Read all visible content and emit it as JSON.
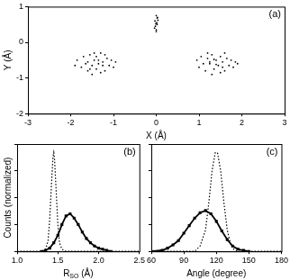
{
  "chart_data": [
    {
      "type": "scatter",
      "title": "(a)",
      "x_label": "X (Å)",
      "y_label": "Y (Å)",
      "xlim": [
        -3,
        3
      ],
      "xticks": [
        -3,
        -2,
        -1,
        0,
        1,
        2,
        3
      ],
      "ylim": [
        -2,
        1
      ],
      "yticks": [
        -2,
        -1,
        0,
        1
      ],
      "grid": false,
      "series": [
        {
          "color": "#000000",
          "marker": "circle",
          "values": [
            [
              -1.85,
              -0.5
            ],
            [
              -1.75,
              -0.7
            ],
            [
              -1.7,
              -0.4
            ],
            [
              -1.6,
              -0.8
            ],
            [
              -1.6,
              -0.55
            ],
            [
              -1.55,
              -0.35
            ],
            [
              -1.5,
              -0.65
            ],
            [
              -1.45,
              -0.5
            ],
            [
              -1.4,
              -0.75
            ],
            [
              -1.4,
              -0.4
            ],
            [
              -1.35,
              -0.6
            ],
            [
              -1.3,
              -0.3
            ],
            [
              -1.25,
              -0.55
            ],
            [
              -1.2,
              -0.8
            ],
            [
              -1.15,
              -0.45
            ],
            [
              -1.1,
              -0.65
            ],
            [
              -1.05,
              -0.5
            ],
            [
              -1.0,
              -0.7
            ],
            [
              -0.95,
              -0.55
            ],
            [
              -1.5,
              -0.9
            ],
            [
              -1.3,
              -0.85
            ],
            [
              -1.65,
              -0.6
            ],
            [
              -1.45,
              -0.3
            ],
            [
              -1.2,
              -0.35
            ],
            [
              -1.9,
              -0.65
            ],
            [
              -1.35,
              -0.5
            ],
            [
              -1.55,
              -0.75
            ],
            [
              -1.25,
              -0.65
            ],
            [
              0.95,
              -0.5
            ],
            [
              1.0,
              -0.7
            ],
            [
              1.05,
              -0.4
            ],
            [
              1.1,
              -0.6
            ],
            [
              1.15,
              -0.8
            ],
            [
              1.2,
              -0.45
            ],
            [
              1.25,
              -0.6
            ],
            [
              1.3,
              -0.35
            ],
            [
              1.35,
              -0.75
            ],
            [
              1.4,
              -0.5
            ],
            [
              1.45,
              -0.65
            ],
            [
              1.5,
              -0.4
            ],
            [
              1.55,
              -0.55
            ],
            [
              1.6,
              -0.8
            ],
            [
              1.65,
              -0.45
            ],
            [
              1.7,
              -0.65
            ],
            [
              1.75,
              -0.5
            ],
            [
              1.8,
              -0.7
            ],
            [
              1.85,
              -0.55
            ],
            [
              1.3,
              -0.9
            ],
            [
              1.5,
              -0.85
            ],
            [
              1.2,
              -0.3
            ],
            [
              1.6,
              -0.3
            ],
            [
              1.4,
              -0.62
            ],
            [
              1.9,
              -0.6
            ],
            [
              1.35,
              -0.48
            ],
            [
              1.55,
              -0.7
            ],
            [
              1.25,
              -0.55
            ],
            [
              0,
              0.35
            ],
            [
              0.02,
              0.5
            ],
            [
              -0.03,
              0.6
            ],
            [
              0.03,
              0.7
            ],
            [
              -0.02,
              0.45
            ],
            [
              0.01,
              0.55
            ],
            [
              0,
              0.75
            ],
            [
              -0.04,
              0.4
            ],
            [
              0.04,
              0.62
            ],
            [
              0,
              0.3
            ],
            [
              0.02,
              0.68
            ],
            [
              -0.01,
              0.52
            ]
          ]
        }
      ]
    },
    {
      "type": "line",
      "title": "(b)",
      "x_label": "R",
      "x_label_sub": "SO",
      "x_label_tail": " (Å)",
      "y_label": "Counts (normalized)",
      "xlim": [
        1.0,
        2.5
      ],
      "xticks": [
        {
          "value": 1,
          "label": "1.0"
        },
        {
          "value": 1.5,
          "label": "1.5"
        },
        {
          "value": 2,
          "label": "2.0"
        },
        {
          "value": 2.5,
          "label": "2.5"
        }
      ],
      "ylim": [
        0,
        1
      ],
      "yticks": [
        0,
        0.25,
        0.5,
        0.75,
        1
      ],
      "grid": false,
      "tick_labels": "x",
      "series": [
        {
          "color": "#000000",
          "line_style": "dotted",
          "marker": "none",
          "values": [
            [
              1.0,
              0
            ],
            [
              1.3,
              0
            ],
            [
              1.35,
              0.02
            ],
            [
              1.38,
              0.1
            ],
            [
              1.4,
              0.3
            ],
            [
              1.42,
              0.6
            ],
            [
              1.44,
              0.88
            ],
            [
              1.45,
              0.92
            ],
            [
              1.46,
              0.85
            ],
            [
              1.48,
              0.55
            ],
            [
              1.5,
              0.25
            ],
            [
              1.52,
              0.08
            ],
            [
              1.55,
              0.02
            ],
            [
              1.6,
              0
            ],
            [
              2.5,
              0
            ]
          ]
        },
        {
          "color": "#000000",
          "line_style": "solid",
          "marker": "square",
          "values": [
            [
              1.3,
              0
            ],
            [
              1.35,
              0.01
            ],
            [
              1.4,
              0.03
            ],
            [
              1.45,
              0.08
            ],
            [
              1.5,
              0.15
            ],
            [
              1.55,
              0.25
            ],
            [
              1.6,
              0.33
            ],
            [
              1.65,
              0.35
            ],
            [
              1.7,
              0.31
            ],
            [
              1.75,
              0.25
            ],
            [
              1.8,
              0.18
            ],
            [
              1.85,
              0.12
            ],
            [
              1.9,
              0.08
            ],
            [
              1.95,
              0.05
            ],
            [
              2.0,
              0.03
            ],
            [
              2.05,
              0.02
            ],
            [
              2.1,
              0.01
            ],
            [
              2.15,
              0
            ]
          ]
        }
      ]
    },
    {
      "type": "line",
      "title": "(c)",
      "x_label": "Angle (degree)",
      "xlim": [
        60,
        180
      ],
      "xticks": [
        60,
        90,
        120,
        150,
        180
      ],
      "ylim": [
        0,
        1
      ],
      "yticks": [
        0,
        0.25,
        0.5,
        0.75,
        1
      ],
      "grid": false,
      "tick_labels": "x",
      "series": [
        {
          "color": "#000000",
          "line_style": "dotted",
          "marker": "none",
          "values": [
            [
              60,
              0
            ],
            [
              100,
              0
            ],
            [
              105,
              0.05
            ],
            [
              110,
              0.2
            ],
            [
              113,
              0.45
            ],
            [
              116,
              0.75
            ],
            [
              119,
              0.92
            ],
            [
              121,
              0.92
            ],
            [
              124,
              0.75
            ],
            [
              127,
              0.45
            ],
            [
              130,
              0.2
            ],
            [
              133,
              0.07
            ],
            [
              136,
              0.02
            ],
            [
              140,
              0
            ],
            [
              180,
              0
            ]
          ]
        },
        {
          "color": "#000000",
          "line_style": "solid",
          "marker": "square",
          "values": [
            [
              60,
              0
            ],
            [
              70,
              0.01
            ],
            [
              75,
              0.03
            ],
            [
              80,
              0.06
            ],
            [
              85,
              0.1
            ],
            [
              90,
              0.17
            ],
            [
              95,
              0.24
            ],
            [
              100,
              0.31
            ],
            [
              105,
              0.36
            ],
            [
              110,
              0.38
            ],
            [
              115,
              0.35
            ],
            [
              120,
              0.28
            ],
            [
              125,
              0.19
            ],
            [
              130,
              0.11
            ],
            [
              135,
              0.05
            ],
            [
              140,
              0.02
            ],
            [
              145,
              0.01
            ],
            [
              150,
              0
            ]
          ]
        }
      ]
    }
  ]
}
